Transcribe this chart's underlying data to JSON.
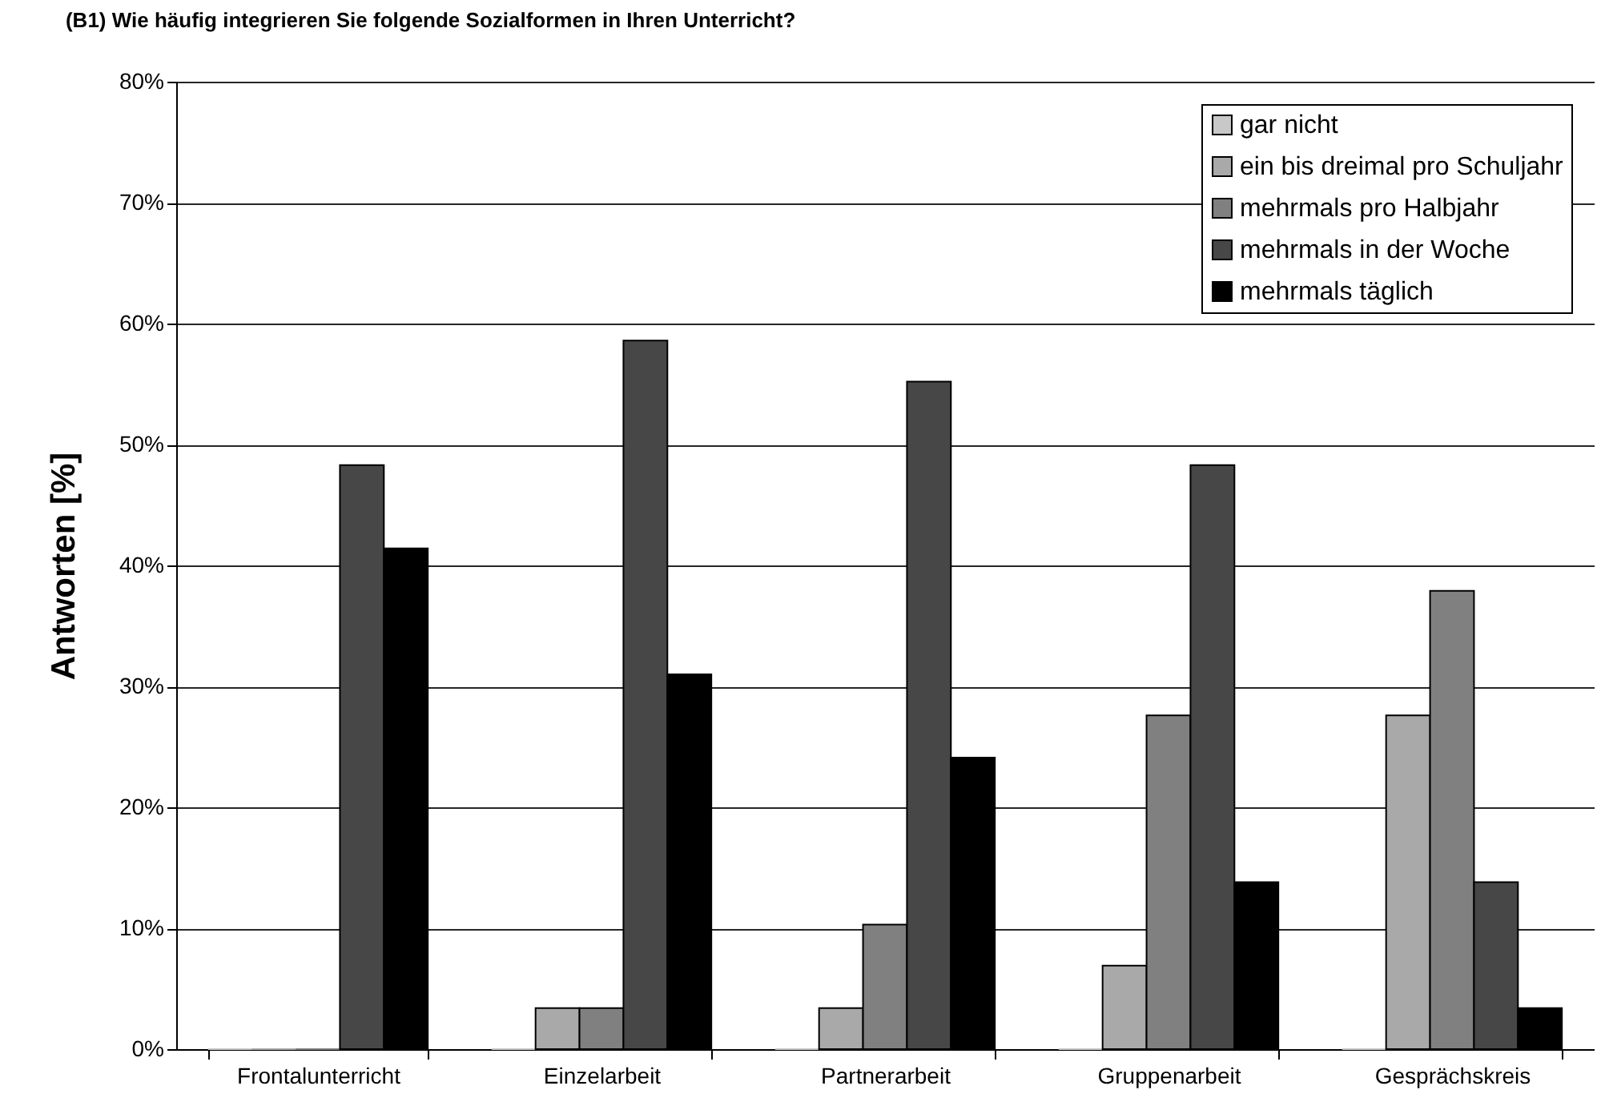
{
  "chart_data": {
    "type": "bar",
    "title": "(B1) Wie häufig integrieren Sie folgende Sozialformen in Ihren Unterricht?",
    "ylabel": "Antworten [%]",
    "categories": [
      "Frontalunterricht",
      "Einzelarbeit",
      "Partnerarbeit",
      "Gruppenarbeit",
      "Gesprächskreis"
    ],
    "series": [
      {
        "name": "gar nicht",
        "color": "#c8c8c8",
        "values": [
          0,
          0,
          0,
          0,
          0
        ]
      },
      {
        "name": "ein bis dreimal pro Schuljahr",
        "color": "#a9a9a9",
        "values": [
          0,
          3.4,
          3.4,
          6.9,
          27.6
        ]
      },
      {
        "name": "mehrmals pro Halbjahr",
        "color": "#808080",
        "values": [
          0,
          3.4,
          10.3,
          27.6,
          37.9
        ]
      },
      {
        "name": "mehrmals in der Woche",
        "color": "#474747",
        "values": [
          48.3,
          58.6,
          55.2,
          48.3,
          13.8
        ]
      },
      {
        "name": "mehrmals täglich",
        "color": "#000000",
        "values": [
          41.4,
          31.0,
          24.1,
          13.8,
          3.4
        ]
      }
    ],
    "ylim": [
      0,
      80
    ],
    "yticks": [
      {
        "value": 0,
        "label": "0%"
      },
      {
        "value": 10,
        "label": "10%"
      },
      {
        "value": 20,
        "label": "20%"
      },
      {
        "value": 30,
        "label": "30%"
      },
      {
        "value": 40,
        "label": "40%"
      },
      {
        "value": 50,
        "label": "50%"
      },
      {
        "value": 60,
        "label": "60%"
      },
      {
        "value": 70,
        "label": "70%"
      },
      {
        "value": 80,
        "label": "80%"
      }
    ],
    "grid": "y",
    "legend": "top right"
  }
}
